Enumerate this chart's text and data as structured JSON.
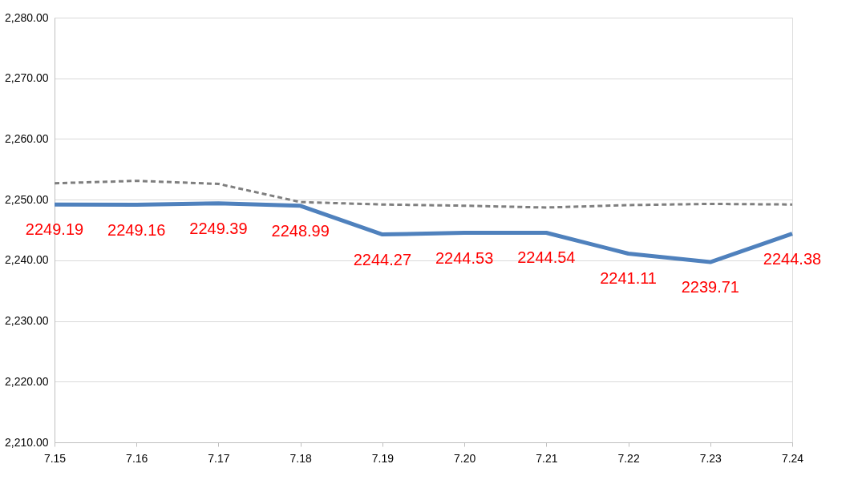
{
  "chart_data": {
    "type": "line",
    "categories": [
      "7.15",
      "7.16",
      "7.17",
      "7.18",
      "7.19",
      "7.20",
      "7.21",
      "7.22",
      "7.23",
      "7.24"
    ],
    "series": [
      {
        "color": "#4f81bd",
        "line_style": "solid",
        "data_labels": true,
        "values": [
          2249.19,
          2249.16,
          2249.39,
          2248.99,
          2244.27,
          2244.53,
          2244.54,
          2241.11,
          2239.71,
          2244.38
        ]
      },
      {
        "color": "#7f7f7f",
        "line_style": "dashed",
        "values": [
          2252.7,
          2253.1,
          2252.6,
          2249.6,
          2249.2,
          2249.0,
          2248.7,
          2249.1,
          2249.3,
          2249.2
        ]
      }
    ],
    "ylim": [
      2210,
      2280
    ],
    "yticks": [
      {
        "value": 2210,
        "label": "2,210.00"
      },
      {
        "value": 2220,
        "label": "2,220.00"
      },
      {
        "value": 2230,
        "label": "2,230.00"
      },
      {
        "value": 2240,
        "label": "2,240.00"
      },
      {
        "value": 2250,
        "label": "2,250.00"
      },
      {
        "value": 2260,
        "label": "2,260.00"
      },
      {
        "value": 2270,
        "label": "2,270.00"
      },
      {
        "value": 2280,
        "label": "2,280.00"
      }
    ],
    "grid": "y",
    "marker": "none"
  }
}
